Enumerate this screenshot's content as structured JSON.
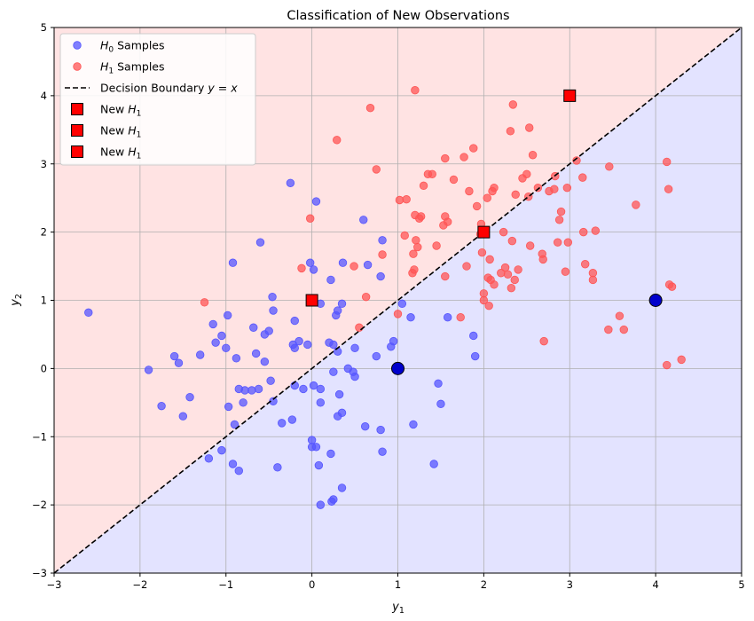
{
  "chart_data": {
    "type": "scatter",
    "title": "Classification of New Observations",
    "xlabel": "y",
    "xlabel_sub": "1",
    "ylabel": "y",
    "ylabel_sub": "2",
    "xlim": [
      -3,
      5
    ],
    "ylim": [
      -3,
      5
    ],
    "xticks": [
      -3,
      -2,
      -1,
      0,
      1,
      2,
      3,
      4,
      5
    ],
    "yticks": [
      -3,
      -2,
      -1,
      0,
      1,
      2,
      3,
      4,
      5
    ],
    "xtick_labels": [
      "−3",
      "−2",
      "−1",
      "0",
      "1",
      "2",
      "3",
      "4",
      "5"
    ],
    "ytick_labels": [
      "−3",
      "−2",
      "−1",
      "0",
      "1",
      "2",
      "3",
      "4",
      "5"
    ],
    "grid": true,
    "legend_position": "top-left",
    "colors": {
      "h0": "#5555ff",
      "h1": "#ff5555",
      "h0_region": "#e3e3ff",
      "h1_region": "#ffe3e3",
      "boundary": "#000000",
      "new_h1": "#ff0000",
      "new_h0": "#0000cc"
    },
    "legend": [
      {
        "kind": "h0",
        "label": "H",
        "sub": "0",
        "suffix": " Samples"
      },
      {
        "kind": "h1",
        "label": "H",
        "sub": "1",
        "suffix": " Samples"
      },
      {
        "kind": "boundary",
        "label": "Decision Boundary ",
        "math": "y = x"
      },
      {
        "kind": "new_h1",
        "label": "New H",
        "sub": "1"
      },
      {
        "kind": "new_h1",
        "label": "New H",
        "sub": "1"
      },
      {
        "kind": "new_h1",
        "label": "New H",
        "sub": "1"
      }
    ],
    "boundary": {
      "x": [
        -3,
        5
      ],
      "y": [
        -3,
        5
      ]
    },
    "series": [
      {
        "name": "H0 Samples",
        "points": [
          [
            -2.6,
            0.82
          ],
          [
            -1.9,
            -0.02
          ],
          [
            -1.75,
            -0.55
          ],
          [
            -1.6,
            0.18
          ],
          [
            -1.55,
            0.08
          ],
          [
            -1.5,
            -0.7
          ],
          [
            -1.42,
            -0.42
          ],
          [
            -1.3,
            0.2
          ],
          [
            -1.2,
            -1.32
          ],
          [
            -1.15,
            0.65
          ],
          [
            -1.12,
            0.38
          ],
          [
            -1.05,
            -1.2
          ],
          [
            -1.05,
            0.48
          ],
          [
            -1.0,
            0.3
          ],
          [
            -0.98,
            0.78
          ],
          [
            -0.97,
            -0.56
          ],
          [
            -0.92,
            -1.4
          ],
          [
            -0.92,
            1.55
          ],
          [
            -0.9,
            -0.82
          ],
          [
            -0.88,
            0.15
          ],
          [
            -0.85,
            -1.5
          ],
          [
            -0.85,
            -0.3
          ],
          [
            -0.8,
            -0.5
          ],
          [
            -0.78,
            -0.32
          ],
          [
            -0.7,
            -0.32
          ],
          [
            -0.68,
            0.6
          ],
          [
            -0.65,
            0.22
          ],
          [
            -0.62,
            -0.3
          ],
          [
            -0.6,
            1.85
          ],
          [
            -0.55,
            0.1
          ],
          [
            -0.55,
            0.5
          ],
          [
            -0.5,
            0.55
          ],
          [
            -0.48,
            -0.18
          ],
          [
            -0.46,
            1.05
          ],
          [
            -0.45,
            -0.48
          ],
          [
            -0.45,
            0.85
          ],
          [
            -0.4,
            -1.45
          ],
          [
            -0.35,
            -0.8
          ],
          [
            -0.25,
            2.72
          ],
          [
            -0.23,
            -0.75
          ],
          [
            -0.22,
            0.35
          ],
          [
            -0.2,
            0.3
          ],
          [
            -0.2,
            -0.25
          ],
          [
            -0.2,
            0.7
          ],
          [
            -0.15,
            0.4
          ],
          [
            -0.1,
            -0.3
          ],
          [
            -0.05,
            0.35
          ],
          [
            -0.02,
            1.55
          ],
          [
            0.0,
            -1.15
          ],
          [
            0.0,
            -1.05
          ],
          [
            0.02,
            1.45
          ],
          [
            0.02,
            -0.25
          ],
          [
            0.05,
            -1.15
          ],
          [
            0.05,
            2.45
          ],
          [
            0.08,
            -1.42
          ],
          [
            0.1,
            -2.0
          ],
          [
            0.1,
            0.95
          ],
          [
            0.1,
            -0.3
          ],
          [
            0.1,
            -0.5
          ],
          [
            0.2,
            0.38
          ],
          [
            0.22,
            -1.25
          ],
          [
            0.22,
            1.3
          ],
          [
            0.23,
            -1.95
          ],
          [
            0.25,
            -1.92
          ],
          [
            0.25,
            0.35
          ],
          [
            0.25,
            -0.05
          ],
          [
            0.28,
            0.78
          ],
          [
            0.3,
            0.85
          ],
          [
            0.3,
            0.25
          ],
          [
            0.3,
            -0.7
          ],
          [
            0.32,
            -0.38
          ],
          [
            0.35,
            0.95
          ],
          [
            0.35,
            -0.65
          ],
          [
            0.35,
            -1.75
          ],
          [
            0.36,
            1.55
          ],
          [
            0.42,
            0.0
          ],
          [
            0.48,
            -0.05
          ],
          [
            0.5,
            -0.12
          ],
          [
            0.5,
            0.3
          ],
          [
            0.6,
            2.18
          ],
          [
            0.62,
            -0.85
          ],
          [
            0.65,
            1.52
          ],
          [
            0.75,
            0.18
          ],
          [
            0.8,
            1.35
          ],
          [
            0.8,
            -0.9
          ],
          [
            0.82,
            1.88
          ],
          [
            0.82,
            -1.22
          ],
          [
            0.92,
            0.32
          ],
          [
            0.95,
            0.4
          ],
          [
            1.0,
            0.02
          ],
          [
            1.05,
            0.95
          ],
          [
            1.15,
            0.75
          ],
          [
            1.18,
            -0.82
          ],
          [
            1.42,
            -1.4
          ],
          [
            1.47,
            -0.22
          ],
          [
            1.5,
            -0.52
          ],
          [
            1.58,
            0.75
          ],
          [
            1.88,
            0.48
          ],
          [
            1.9,
            0.18
          ]
        ]
      },
      {
        "name": "H1 Samples",
        "points": [
          [
            -1.25,
            0.97
          ],
          [
            -0.12,
            1.47
          ],
          [
            -0.02,
            2.2
          ],
          [
            0.29,
            3.35
          ],
          [
            0.49,
            1.5
          ],
          [
            0.55,
            0.6
          ],
          [
            0.63,
            1.05
          ],
          [
            0.68,
            3.82
          ],
          [
            0.75,
            2.92
          ],
          [
            0.82,
            1.67
          ],
          [
            1.0,
            0.8
          ],
          [
            1.02,
            2.47
          ],
          [
            1.08,
            1.95
          ],
          [
            1.1,
            2.48
          ],
          [
            1.17,
            1.4
          ],
          [
            1.18,
            1.68
          ],
          [
            1.19,
            1.45
          ],
          [
            1.2,
            2.25
          ],
          [
            1.2,
            4.08
          ],
          [
            1.21,
            1.88
          ],
          [
            1.23,
            1.78
          ],
          [
            1.25,
            2.2
          ],
          [
            1.27,
            2.23
          ],
          [
            1.3,
            2.68
          ],
          [
            1.35,
            2.85
          ],
          [
            1.4,
            2.85
          ],
          [
            1.45,
            1.8
          ],
          [
            1.53,
            2.1
          ],
          [
            1.55,
            3.08
          ],
          [
            1.55,
            2.23
          ],
          [
            1.55,
            1.35
          ],
          [
            1.58,
            2.15
          ],
          [
            1.65,
            2.77
          ],
          [
            1.73,
            0.75
          ],
          [
            1.77,
            3.1
          ],
          [
            1.8,
            1.5
          ],
          [
            1.83,
            2.6
          ],
          [
            1.88,
            3.23
          ],
          [
            1.92,
            2.38
          ],
          [
            1.96,
            1.97
          ],
          [
            1.97,
            2.12
          ],
          [
            1.98,
            1.7
          ],
          [
            2.0,
            1.1
          ],
          [
            2.0,
            1.0
          ],
          [
            2.04,
            2.5
          ],
          [
            2.05,
            1.33
          ],
          [
            2.06,
            0.92
          ],
          [
            2.07,
            1.6
          ],
          [
            2.08,
            1.3
          ],
          [
            2.1,
            2.6
          ],
          [
            2.12,
            1.23
          ],
          [
            2.12,
            2.65
          ],
          [
            2.2,
            1.4
          ],
          [
            2.23,
            2.0
          ],
          [
            2.25,
            1.48
          ],
          [
            2.28,
            1.38
          ],
          [
            2.31,
            3.48
          ],
          [
            2.32,
            1.18
          ],
          [
            2.33,
            1.87
          ],
          [
            2.34,
            3.87
          ],
          [
            2.36,
            1.3
          ],
          [
            2.37,
            2.55
          ],
          [
            2.4,
            1.45
          ],
          [
            2.45,
            2.79
          ],
          [
            2.5,
            2.85
          ],
          [
            2.52,
            2.52
          ],
          [
            2.53,
            3.53
          ],
          [
            2.54,
            1.8
          ],
          [
            2.57,
            3.13
          ],
          [
            2.63,
            2.65
          ],
          [
            2.68,
            1.68
          ],
          [
            2.69,
            1.6
          ],
          [
            2.7,
            0.4
          ],
          [
            2.76,
            2.6
          ],
          [
            2.82,
            2.63
          ],
          [
            2.83,
            2.82
          ],
          [
            2.86,
            1.85
          ],
          [
            2.88,
            2.18
          ],
          [
            2.9,
            2.3
          ],
          [
            2.95,
            1.42
          ],
          [
            2.97,
            2.65
          ],
          [
            2.98,
            1.85
          ],
          [
            3.08,
            3.05
          ],
          [
            3.15,
            2.8
          ],
          [
            3.16,
            2.0
          ],
          [
            3.18,
            1.53
          ],
          [
            3.27,
            1.3
          ],
          [
            3.27,
            1.4
          ],
          [
            3.3,
            2.02
          ],
          [
            3.45,
            0.57
          ],
          [
            3.46,
            2.96
          ],
          [
            3.58,
            0.77
          ],
          [
            3.63,
            0.57
          ],
          [
            3.77,
            2.4
          ],
          [
            4.13,
            3.03
          ],
          [
            4.13,
            0.05
          ],
          [
            4.15,
            2.63
          ],
          [
            4.16,
            1.23
          ],
          [
            4.19,
            1.2
          ],
          [
            4.3,
            0.13
          ]
        ]
      },
      {
        "name": "New H1",
        "marker": "square",
        "points": [
          [
            0.0,
            1.0
          ],
          [
            2.0,
            2.0
          ],
          [
            3.0,
            4.0
          ]
        ]
      },
      {
        "name": "New H0",
        "marker": "circle",
        "points": [
          [
            1.0,
            0.0
          ],
          [
            4.0,
            1.0
          ]
        ]
      }
    ]
  }
}
